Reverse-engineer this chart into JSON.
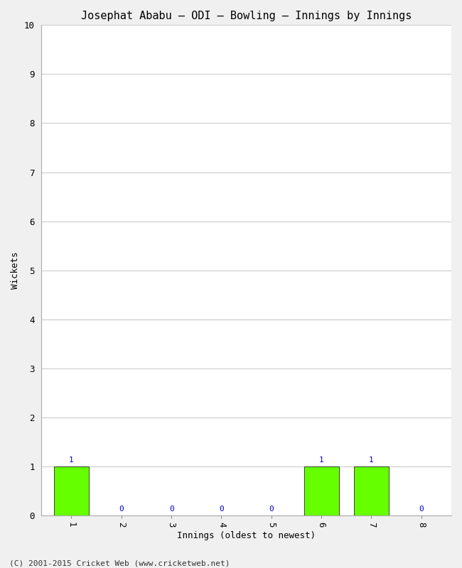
{
  "title": "Josephat Ababu – ODI – Bowling – Innings by Innings",
  "xlabel": "Innings (oldest to newest)",
  "ylabel": "Wickets",
  "categories": [
    1,
    2,
    3,
    4,
    5,
    6,
    7,
    8
  ],
  "values": [
    1,
    0,
    0,
    0,
    0,
    1,
    1,
    0
  ],
  "bar_color": "#66ff00",
  "bar_edge_color": "#000000",
  "annotation_color": "#0000cc",
  "ylim": [
    0,
    10
  ],
  "yticks": [
    0,
    1,
    2,
    3,
    4,
    5,
    6,
    7,
    8,
    9,
    10
  ],
  "background_color": "#f0f0f0",
  "plot_bg_color": "#ffffff",
  "title_fontsize": 11,
  "axis_fontsize": 9,
  "tick_fontsize": 9,
  "annotation_fontsize": 8,
  "footer": "(C) 2001-2015 Cricket Web (www.cricketweb.net)",
  "footer_fontsize": 8
}
